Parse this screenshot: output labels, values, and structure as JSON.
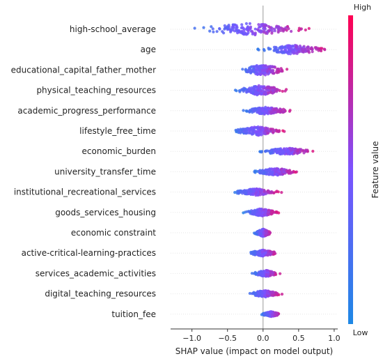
{
  "chart_data": {
    "type": "scatter",
    "subtype": "shap-beeswarm",
    "title": "",
    "xlabel": "SHAP value (impact on model output)",
    "xlim": [
      -1.3,
      1.05
    ],
    "xticks": [
      -1.0,
      -0.5,
      0.0,
      0.5,
      1.0
    ],
    "xtick_labels": [
      "−1.0",
      "−0.5",
      "0.0",
      "0.5",
      "1.0"
    ],
    "colorbar": {
      "label": "Feature value",
      "high": "High",
      "low": "Low",
      "color_low": "#1e88e5",
      "color_high": "#ff0051"
    },
    "features": [
      {
        "name": "high-school_average",
        "min": -1.2,
        "max": 0.85,
        "spread": 0.95
      },
      {
        "name": "age",
        "min": -0.15,
        "max": 1.0,
        "spread": 0.75
      },
      {
        "name": "educational_capital_father_mother",
        "min": -0.4,
        "max": 0.4,
        "spread": 0.9
      },
      {
        "name": "physical_teaching_resources",
        "min": -0.5,
        "max": 0.4,
        "spread": 0.8
      },
      {
        "name": "academic_progress_performance",
        "min": -0.35,
        "max": 0.45,
        "spread": 0.6
      },
      {
        "name": "lifestyle_free_time",
        "min": -0.5,
        "max": 0.35,
        "spread": 0.7
      },
      {
        "name": "economic_burden",
        "min": -0.15,
        "max": 0.8,
        "spread": 0.55
      },
      {
        "name": "university_transfer_time",
        "min": -0.2,
        "max": 0.55,
        "spread": 0.6
      },
      {
        "name": "institutional_recreational_services",
        "min": -0.5,
        "max": 0.3,
        "spread": 0.55
      },
      {
        "name": "goods_services_housing",
        "min": -0.3,
        "max": 0.25,
        "spread": 0.6
      },
      {
        "name": "economic constraint",
        "min": -0.15,
        "max": 0.15,
        "spread": 0.6
      },
      {
        "name": "active-critical-learning-practices",
        "min": -0.25,
        "max": 0.25,
        "spread": 0.5
      },
      {
        "name": "services_academic_activities",
        "min": -0.2,
        "max": 0.28,
        "spread": 0.5
      },
      {
        "name": "digital_teaching_resources",
        "min": -0.25,
        "max": 0.3,
        "spread": 0.55
      },
      {
        "name": "tuition_fee",
        "min": -0.05,
        "max": 0.28,
        "spread": 0.4
      }
    ]
  }
}
